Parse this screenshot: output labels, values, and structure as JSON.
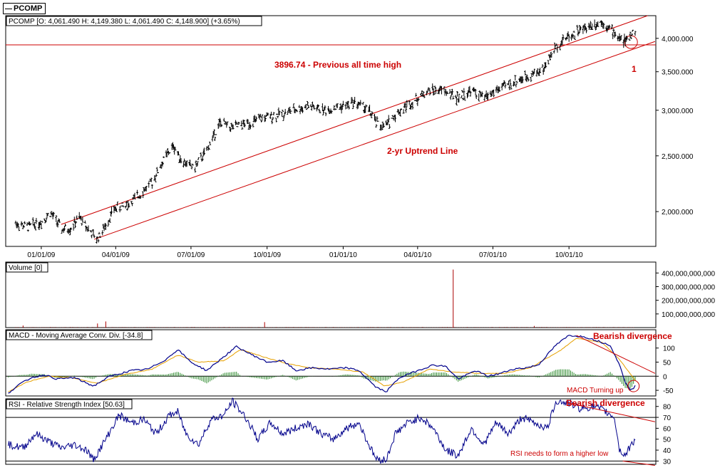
{
  "app": {
    "symbol_legend": "PCOMP"
  },
  "colors": {
    "price_bars": "#000000",
    "annotation_red": "#cc0000",
    "macd_line": "#00008b",
    "signal_line": "#e6a000",
    "histogram": "#2e8b2e",
    "rsi_line": "#00008b",
    "volume_bars": "#aa0000",
    "grid_black": "#000000"
  },
  "chart_data": [
    {
      "type": "ohlc",
      "panel": "price",
      "title": "PCOMP [O: 4,061.490  H: 4,149.380  L: 4,061.490  C: 4,148.900] (+3.65%)",
      "scale": "log",
      "ylim": [
        1740,
        4380
      ],
      "y_ticks": [
        2000,
        2500,
        3000,
        3500,
        4000
      ],
      "y_tick_labels": [
        "2,000.000",
        "2,500.000",
        "3,000.000",
        "3,500.000",
        "4,000.000"
      ],
      "x_ticks": [
        "01/01/09",
        "04/01/09",
        "07/01/09",
        "10/01/09",
        "01/01/10",
        "04/01/10",
        "07/01/10",
        "10/01/10"
      ],
      "xlim": [
        "2008-11-19",
        "2011-01-14"
      ],
      "series": [
        {
          "points": [
            [
              "2008-12-01",
              1910
            ],
            [
              "2008-12-15",
              1880
            ],
            [
              "2009-01-01",
              1920
            ],
            [
              "2009-01-12",
              1990
            ],
            [
              "2009-01-20",
              1920
            ],
            [
              "2009-01-26",
              1860
            ],
            [
              "2009-02-05",
              1870
            ],
            [
              "2009-02-16",
              1950
            ],
            [
              "2009-03-01",
              1850
            ],
            [
              "2009-03-09",
              1790
            ],
            [
              "2009-03-17",
              1860
            ],
            [
              "2009-03-30",
              2020
            ],
            [
              "2009-04-15",
              2050
            ],
            [
              "2009-05-01",
              2150
            ],
            [
              "2009-05-15",
              2250
            ],
            [
              "2009-06-01",
              2500
            ],
            [
              "2009-06-10",
              2600
            ],
            [
              "2009-06-20",
              2450
            ],
            [
              "2009-07-05",
              2380
            ],
            [
              "2009-07-20",
              2550
            ],
            [
              "2009-08-05",
              2850
            ],
            [
              "2009-08-20",
              2800
            ],
            [
              "2009-09-10",
              2850
            ],
            [
              "2009-09-25",
              2900
            ],
            [
              "2009-10-15",
              2950
            ],
            [
              "2009-11-01",
              3000
            ],
            [
              "2009-11-20",
              3050
            ],
            [
              "2009-12-10",
              3000
            ],
            [
              "2010-01-01",
              3050
            ],
            [
              "2010-01-15",
              3100
            ],
            [
              "2010-02-01",
              3000
            ],
            [
              "2010-02-10",
              2850
            ],
            [
              "2010-02-20",
              2800
            ],
            [
              "2010-03-05",
              2950
            ],
            [
              "2010-03-25",
              3100
            ],
            [
              "2010-04-15",
              3250
            ],
            [
              "2010-05-01",
              3250
            ],
            [
              "2010-05-20",
              3150
            ],
            [
              "2010-06-05",
              3250
            ],
            [
              "2010-06-20",
              3150
            ],
            [
              "2010-07-05",
              3250
            ],
            [
              "2010-07-25",
              3350
            ],
            [
              "2010-08-15",
              3450
            ],
            [
              "2010-09-01",
              3550
            ],
            [
              "2010-09-12",
              3800
            ],
            [
              "2010-09-25",
              4000
            ],
            [
              "2010-10-10",
              4100
            ],
            [
              "2010-10-25",
              4200
            ],
            [
              "2010-11-10",
              4280
            ],
            [
              "2010-11-20",
              4150
            ],
            [
              "2010-12-01",
              4000
            ],
            [
              "2010-12-10",
              3950
            ],
            [
              "2010-12-15",
              4060
            ],
            [
              "2010-12-20",
              4149
            ]
          ]
        }
      ],
      "annotations": [
        {
          "label": "3896.74 - Previous all time high",
          "value": 3896.74,
          "kind": "horizontal-line"
        },
        {
          "label": "2-yr Uptrend Line",
          "kind": "trend-line",
          "from": [
            "2009-03-06",
            1790
          ],
          "to": [
            "2011-01-13",
            3950
          ]
        },
        {
          "label": "",
          "kind": "upper-channel-line",
          "from": [
            "2009-01-25",
            1900
          ],
          "to": [
            "2011-01-04",
            4380
          ]
        },
        {
          "label": "1",
          "kind": "circle-marker",
          "at": [
            "2010-12-15",
            3940
          ]
        }
      ]
    },
    {
      "type": "bar",
      "panel": "volume",
      "title": "Volume [0]",
      "ylim": [
        0,
        480000000000
      ],
      "y_ticks": [
        100000000000,
        200000000000,
        300000000000,
        400000000000
      ],
      "y_tick_labels": [
        "100,000,000,000",
        "200,000,000,000",
        "300,000,000,000",
        "400,000,000,000"
      ],
      "spikes": [
        [
          "2008-12-10",
          15000000000
        ],
        [
          "2009-03-10",
          30000000000
        ],
        [
          "2009-03-20",
          45000000000
        ],
        [
          "2009-09-28",
          40000000000
        ],
        [
          "2010-05-14",
          425000000000
        ],
        [
          "2010-08-20",
          12000000000
        ]
      ]
    },
    {
      "type": "line",
      "panel": "macd",
      "title": "MACD - Moving Average Conv. Div. [-34.8]",
      "ylim": [
        -70,
        165
      ],
      "y_ticks": [
        -50,
        0,
        50,
        100
      ],
      "y_tick_labels": [
        "-50",
        "0",
        "50",
        "100"
      ],
      "series": [
        {
          "name": "MACD",
          "points": [
            [
              "2008-11-22",
              -60
            ],
            [
              "2008-12-05",
              -30
            ],
            [
              "2008-12-20",
              -5
            ],
            [
              "2009-01-05",
              5
            ],
            [
              "2009-01-20",
              -10
            ],
            [
              "2009-02-10",
              -5
            ],
            [
              "2009-03-05",
              -35
            ],
            [
              "2009-03-25",
              0
            ],
            [
              "2009-04-20",
              20
            ],
            [
              "2009-05-10",
              25
            ],
            [
              "2009-06-01",
              60
            ],
            [
              "2009-06-15",
              95
            ],
            [
              "2009-07-01",
              50
            ],
            [
              "2009-07-20",
              20
            ],
            [
              "2009-08-10",
              70
            ],
            [
              "2009-08-25",
              105
            ],
            [
              "2009-09-10",
              80
            ],
            [
              "2009-10-01",
              50
            ],
            [
              "2009-10-20",
              55
            ],
            [
              "2009-11-05",
              20
            ],
            [
              "2009-11-25",
              30
            ],
            [
              "2009-12-15",
              25
            ],
            [
              "2010-01-05",
              30
            ],
            [
              "2010-01-20",
              20
            ],
            [
              "2010-02-10",
              -40
            ],
            [
              "2010-02-22",
              -55
            ],
            [
              "2010-03-10",
              -5
            ],
            [
              "2010-04-01",
              20
            ],
            [
              "2010-04-20",
              40
            ],
            [
              "2010-05-05",
              35
            ],
            [
              "2010-05-20",
              -10
            ],
            [
              "2010-06-10",
              20
            ],
            [
              "2010-06-25",
              0
            ],
            [
              "2010-07-10",
              10
            ],
            [
              "2010-07-25",
              25
            ],
            [
              "2010-08-10",
              30
            ],
            [
              "2010-08-25",
              40
            ],
            [
              "2010-09-15",
              110
            ],
            [
              "2010-10-01",
              145
            ],
            [
              "2010-10-20",
              140
            ],
            [
              "2010-11-05",
              125
            ],
            [
              "2010-11-20",
              110
            ],
            [
              "2010-12-01",
              40
            ],
            [
              "2010-12-08",
              -20
            ],
            [
              "2010-12-15",
              -50
            ],
            [
              "2010-12-20",
              -35
            ]
          ]
        },
        {
          "name": "Signal",
          "points": [
            [
              "2008-11-22",
              -55
            ],
            [
              "2008-12-15",
              -20
            ],
            [
              "2009-01-10",
              0
            ],
            [
              "2009-02-05",
              -5
            ],
            [
              "2009-03-10",
              -25
            ],
            [
              "2009-04-10",
              5
            ],
            [
              "2009-05-15",
              25
            ],
            [
              "2009-06-15",
              75
            ],
            [
              "2009-07-10",
              50
            ],
            [
              "2009-08-10",
              55
            ],
            [
              "2009-08-30",
              95
            ],
            [
              "2009-09-25",
              70
            ],
            [
              "2009-10-25",
              45
            ],
            [
              "2009-11-20",
              30
            ],
            [
              "2009-12-25",
              25
            ],
            [
              "2010-01-25",
              15
            ],
            [
              "2010-02-20",
              -35
            ],
            [
              "2010-03-15",
              -20
            ],
            [
              "2010-04-15",
              25
            ],
            [
              "2010-05-15",
              15
            ],
            [
              "2010-06-15",
              10
            ],
            [
              "2010-07-15",
              10
            ],
            [
              "2010-08-15",
              30
            ],
            [
              "2010-09-20",
              90
            ],
            [
              "2010-10-10",
              135
            ],
            [
              "2010-11-10",
              120
            ],
            [
              "2010-12-01",
              60
            ],
            [
              "2010-12-20",
              -15
            ]
          ]
        }
      ],
      "annotations": [
        {
          "label": "Bearish divergence",
          "kind": "text"
        },
        {
          "label": "MACD Turning up",
          "kind": "text"
        },
        {
          "label": "",
          "kind": "trend-line",
          "from": [
            "2010-10-10",
            145
          ],
          "to": [
            "2011-01-13",
            10
          ]
        }
      ]
    },
    {
      "type": "line",
      "panel": "rsi",
      "title": "RSI - Relative Strength Index [50.63]",
      "ylim": [
        27,
        87
      ],
      "y_ticks": [
        30,
        40,
        50,
        60,
        70,
        80
      ],
      "y_tick_labels": [
        "30",
        "40",
        "50",
        "60",
        "70",
        "80"
      ],
      "reference_lines": [
        30,
        70
      ],
      "series": [
        {
          "name": "RSI",
          "points": [
            [
              "2008-11-22",
              45
            ],
            [
              "2008-12-10",
              42
            ],
            [
              "2008-12-25",
              55
            ],
            [
              "2009-01-10",
              48
            ],
            [
              "2009-01-25",
              42
            ],
            [
              "2009-02-10",
              45
            ],
            [
              "2009-02-25",
              40
            ],
            [
              "2009-03-05",
              31
            ],
            [
              "2009-03-20",
              50
            ],
            [
              "2009-04-05",
              72
            ],
            [
              "2009-04-20",
              65
            ],
            [
              "2009-05-05",
              68
            ],
            [
              "2009-05-20",
              55
            ],
            [
              "2009-06-05",
              72
            ],
            [
              "2009-06-15",
              75
            ],
            [
              "2009-06-25",
              55
            ],
            [
              "2009-07-10",
              45
            ],
            [
              "2009-07-25",
              68
            ],
            [
              "2009-08-10",
              72
            ],
            [
              "2009-08-20",
              85
            ],
            [
              "2009-09-05",
              70
            ],
            [
              "2009-09-20",
              50
            ],
            [
              "2009-10-05",
              65
            ],
            [
              "2009-10-20",
              55
            ],
            [
              "2009-11-05",
              60
            ],
            [
              "2009-11-20",
              65
            ],
            [
              "2009-12-05",
              55
            ],
            [
              "2009-12-20",
              50
            ],
            [
              "2010-01-05",
              60
            ],
            [
              "2010-01-20",
              65
            ],
            [
              "2010-02-01",
              45
            ],
            [
              "2010-02-10",
              32
            ],
            [
              "2010-02-22",
              31
            ],
            [
              "2010-03-05",
              55
            ],
            [
              "2010-03-20",
              65
            ],
            [
              "2010-04-05",
              70
            ],
            [
              "2010-04-20",
              60
            ],
            [
              "2010-05-05",
              40
            ],
            [
              "2010-05-20",
              35
            ],
            [
              "2010-06-05",
              60
            ],
            [
              "2010-06-20",
              45
            ],
            [
              "2010-07-05",
              65
            ],
            [
              "2010-07-20",
              55
            ],
            [
              "2010-08-05",
              70
            ],
            [
              "2010-08-20",
              65
            ],
            [
              "2010-09-05",
              60
            ],
            [
              "2010-09-15",
              85
            ],
            [
              "2010-10-01",
              83
            ],
            [
              "2010-10-15",
              78
            ],
            [
              "2010-11-01",
              80
            ],
            [
              "2010-11-15",
              75
            ],
            [
              "2010-11-25",
              70
            ],
            [
              "2010-12-01",
              40
            ],
            [
              "2010-12-08",
              35
            ],
            [
              "2010-12-15",
              45
            ],
            [
              "2010-12-20",
              50
            ]
          ]
        }
      ],
      "annotations": [
        {
          "label": "Bearish divergence",
          "kind": "text"
        },
        {
          "label": "RSI needs to form a higher low",
          "kind": "text"
        },
        {
          "label": "",
          "kind": "trend-line",
          "from": [
            "2010-10-01",
            83
          ],
          "to": [
            "2011-01-13",
            66
          ]
        },
        {
          "label": "",
          "kind": "trend-line",
          "from": [
            "2010-12-05",
            30
          ],
          "to": [
            "2011-01-13",
            26
          ]
        }
      ]
    }
  ]
}
